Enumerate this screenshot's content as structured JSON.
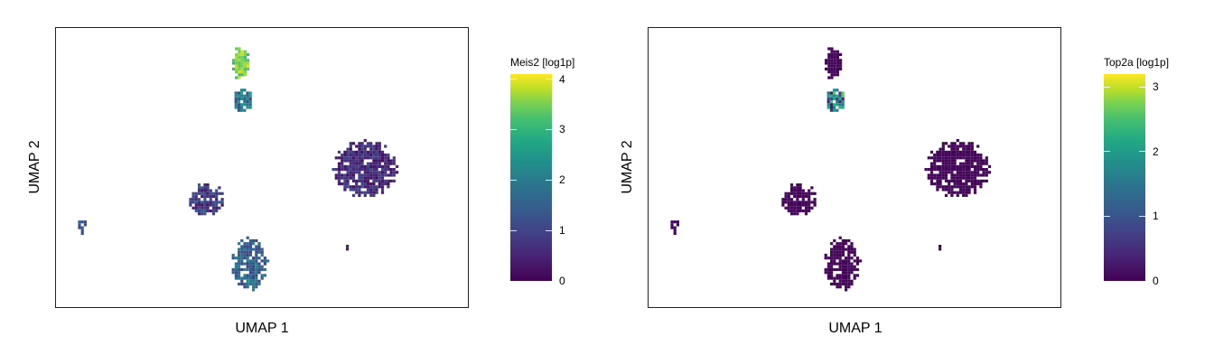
{
  "chart_data": [
    {
      "type": "scatter",
      "xlabel": "UMAP 1",
      "ylabel": "UMAP 2",
      "colorbar": {
        "title": "Meis2 [log1p]",
        "range": [
          0,
          4.1
        ],
        "ticks": [
          0,
          1,
          2,
          3,
          4
        ]
      },
      "colormap": "viridis",
      "grid": false,
      "clusters": [
        {
          "cx": 2.0,
          "cy": 7.7,
          "rx": 0.28,
          "ry": 0.45,
          "expression": 3.3,
          "spread": 0.6
        },
        {
          "cx": 2.1,
          "cy": 6.6,
          "rx": 0.3,
          "ry": 0.35,
          "expression": 1.6,
          "spread": 0.8
        },
        {
          "cx": 6.1,
          "cy": 4.6,
          "rx": 1.0,
          "ry": 0.8,
          "expression": 0.5,
          "spread": 0.4
        },
        {
          "cx": 0.9,
          "cy": 3.7,
          "rx": 0.55,
          "ry": 0.45,
          "expression": 0.7,
          "spread": 0.5
        },
        {
          "cx": 2.3,
          "cy": 1.8,
          "rx": 0.55,
          "ry": 0.75,
          "expression": 1.3,
          "spread": 0.6
        },
        {
          "cx": -3.2,
          "cy": 2.9,
          "rx": 0.15,
          "ry": 0.2,
          "expression": 1.0,
          "spread": 0.6
        },
        {
          "cx": 5.5,
          "cy": 2.3,
          "rx": 0.08,
          "ry": 0.1,
          "expression": 0.4,
          "spread": 0.3
        }
      ]
    },
    {
      "type": "scatter",
      "xlabel": "UMAP 1",
      "ylabel": "UMAP 2",
      "colorbar": {
        "title": "Top2a [log1p]",
        "range": [
          0,
          3.2
        ],
        "ticks": [
          0,
          1,
          2,
          3
        ]
      },
      "colormap": "viridis",
      "grid": false,
      "clusters": [
        {
          "cx": 2.0,
          "cy": 7.7,
          "rx": 0.28,
          "ry": 0.45,
          "expression": 0.05,
          "spread": 0.05
        },
        {
          "cx": 2.1,
          "cy": 6.6,
          "rx": 0.3,
          "ry": 0.35,
          "expression": 1.3,
          "spread": 1.2
        },
        {
          "cx": 6.1,
          "cy": 4.6,
          "rx": 1.0,
          "ry": 0.8,
          "expression": 0.05,
          "spread": 0.05
        },
        {
          "cx": 0.9,
          "cy": 3.7,
          "rx": 0.55,
          "ry": 0.45,
          "expression": 0.05,
          "spread": 0.05
        },
        {
          "cx": 2.3,
          "cy": 1.8,
          "rx": 0.55,
          "ry": 0.75,
          "expression": 0.05,
          "spread": 0.05
        },
        {
          "cx": -3.2,
          "cy": 2.9,
          "rx": 0.15,
          "ry": 0.2,
          "expression": 0.05,
          "spread": 0.05
        },
        {
          "cx": 5.5,
          "cy": 2.3,
          "rx": 0.08,
          "ry": 0.1,
          "expression": 0.05,
          "spread": 0.05
        }
      ]
    }
  ]
}
